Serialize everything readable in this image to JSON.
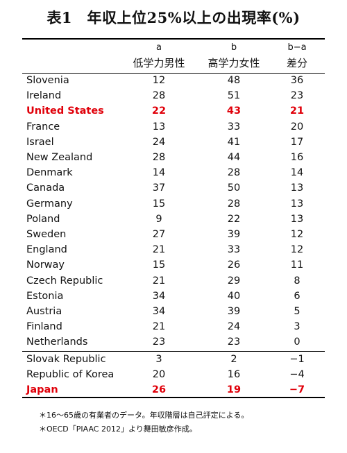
{
  "title": "表1　年収上位25%以上の出現率(%)",
  "columns": [
    {
      "letter": "a",
      "label": "低学力男性"
    },
    {
      "letter": "b",
      "label": "高学力女性"
    },
    {
      "letter": "b−a",
      "label": "差分"
    }
  ],
  "highlight_color": "#e0000a",
  "chart_data": {
    "type": "table",
    "title": "表1　年収上位25%以上の出現率(%)",
    "columns": [
      "低学力男性",
      "高学力女性",
      "差分"
    ],
    "rows": [
      {
        "country": "Slovenia",
        "a": 12,
        "b": 48,
        "diff": "36",
        "highlight": false
      },
      {
        "country": "Ireland",
        "a": 28,
        "b": 51,
        "diff": "23",
        "highlight": false
      },
      {
        "country": "United States",
        "a": 22,
        "b": 43,
        "diff": "21",
        "highlight": true
      },
      {
        "country": "France",
        "a": 13,
        "b": 33,
        "diff": "20",
        "highlight": false
      },
      {
        "country": "Israel",
        "a": 24,
        "b": 41,
        "diff": "17",
        "highlight": false
      },
      {
        "country": "New Zealand",
        "a": 28,
        "b": 44,
        "diff": "16",
        "highlight": false
      },
      {
        "country": "Denmark",
        "a": 14,
        "b": 28,
        "diff": "14",
        "highlight": false
      },
      {
        "country": "Canada",
        "a": 37,
        "b": 50,
        "diff": "13",
        "highlight": false
      },
      {
        "country": "Germany",
        "a": 15,
        "b": 28,
        "diff": "13",
        "highlight": false
      },
      {
        "country": "Poland",
        "a": 9,
        "b": 22,
        "diff": "13",
        "highlight": false
      },
      {
        "country": "Sweden",
        "a": 27,
        "b": 39,
        "diff": "12",
        "highlight": false
      },
      {
        "country": "England",
        "a": 21,
        "b": 33,
        "diff": "12",
        "highlight": false
      },
      {
        "country": "Norway",
        "a": 15,
        "b": 26,
        "diff": "11",
        "highlight": false
      },
      {
        "country": "Czech Republic",
        "a": 21,
        "b": 29,
        "diff": "8",
        "highlight": false
      },
      {
        "country": "Estonia",
        "a": 34,
        "b": 40,
        "diff": "6",
        "highlight": false
      },
      {
        "country": "Austria",
        "a": 34,
        "b": 39,
        "diff": "5",
        "highlight": false
      },
      {
        "country": "Finland",
        "a": 21,
        "b": 24,
        "diff": "3",
        "highlight": false
      },
      {
        "country": "Netherlands",
        "a": 23,
        "b": 23,
        "diff": "0",
        "highlight": false
      },
      {
        "country": "Slovak Republic",
        "a": 3,
        "b": 2,
        "diff": "−1",
        "highlight": false
      },
      {
        "country": "Republic of Korea",
        "a": 20,
        "b": 16,
        "diff": "−4",
        "highlight": false
      },
      {
        "country": "Japan",
        "a": 26,
        "b": 19,
        "diff": "−7",
        "highlight": true
      }
    ]
  },
  "notes": [
    "＊16〜65歳の有業者のデータ。年収階層は自己評定による。",
    "＊OECD「PIAAC 2012」より舞田敏彦作成。"
  ]
}
